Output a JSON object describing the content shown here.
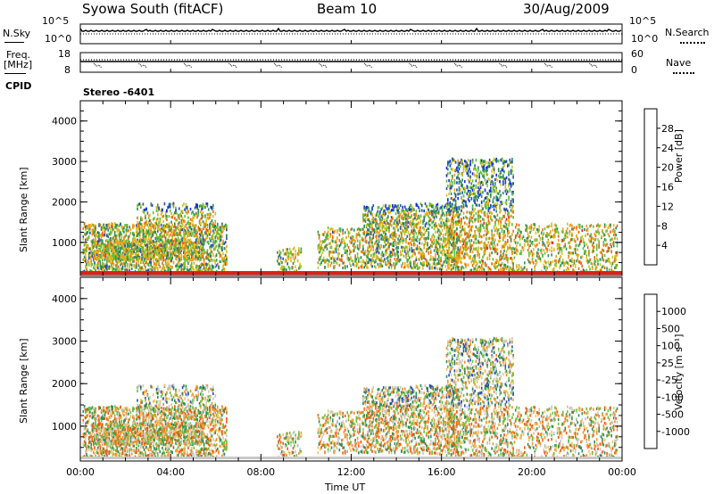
{
  "header": {
    "station": "Syowa South (fitACF)",
    "beam": "Beam 10",
    "date": "30/Aug/2009"
  },
  "top_panels": {
    "nsky": {
      "label": "N.Sky",
      "ticks": [
        "10^5",
        "10^0"
      ]
    },
    "nsearch": {
      "label": "N.Search",
      "ticks": [
        "10^5",
        "10^0"
      ]
    },
    "freq": {
      "label_top": "Freq.",
      "label_unit": "[MHz]",
      "ticks": [
        "18",
        "8"
      ]
    },
    "nave": {
      "label": "Nave",
      "ticks": [
        "60",
        "0"
      ]
    },
    "cpid": {
      "label": "CPID",
      "value": "Stereo -6401"
    }
  },
  "colors": {
    "power": [
      "#0f2fe6",
      "#2a4fb0",
      "#2e8f5a",
      "#5fbf3a",
      "#d6c21e",
      "#f0a020",
      "#e86a10",
      "#e02010"
    ],
    "velocity": [
      "#e01010",
      "#f05a10",
      "#f09030",
      "#f5c060",
      "#c8c8c8",
      "#6ac040",
      "#2e8f5a",
      "#2a4fb0",
      "#1030c0"
    ]
  },
  "chart_data": [
    {
      "type": "heatmap",
      "ylabel": "Slant Range [km]",
      "yticks": [
        "4000",
        "3000",
        "2000",
        "1000"
      ],
      "xticks": [
        "00:00",
        "04:00",
        "08:00",
        "12:00",
        "16:00",
        "20:00",
        "00:00"
      ],
      "ylim": [
        180,
        4500
      ],
      "x_range_hours": [
        0,
        24
      ],
      "colorbar": {
        "label": "Power [dB]",
        "ticks": [
          "28",
          "24",
          "20",
          "16",
          "12",
          "8",
          "4"
        ],
        "range": [
          0,
          32
        ]
      }
    },
    {
      "type": "heatmap",
      "ylabel": "Slant Range [km]",
      "yticks": [
        "4000",
        "3000",
        "2000",
        "1000"
      ],
      "xticks": [
        "00:00",
        "04:00",
        "08:00",
        "12:00",
        "16:00",
        "20:00",
        "00:00"
      ],
      "xlabel": "Time UT",
      "ylim": [
        180,
        4500
      ],
      "x_range_hours": [
        0,
        24
      ],
      "colorbar": {
        "label": "Velocity [m s⁻¹]",
        "ticks": [
          "1000",
          "500",
          "100",
          "25",
          "-25",
          "-100",
          "-500",
          "-1000"
        ]
      }
    }
  ]
}
